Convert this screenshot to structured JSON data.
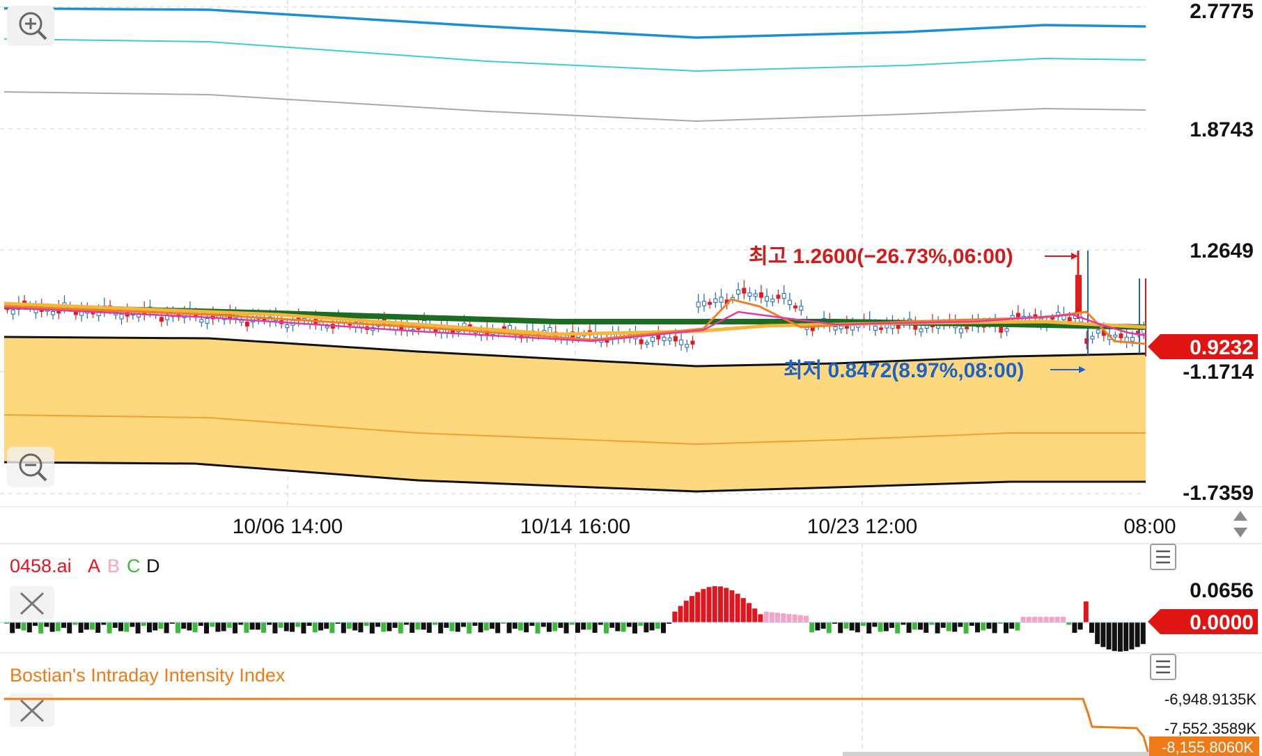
{
  "colors": {
    "band_fill": "#fdd87f",
    "band_edge": "#111111",
    "band_mid": "#f2a030",
    "ma_green": "#1e6b23",
    "ma_yellow": "#f5b63b",
    "ma_orange": "#f07f20",
    "ma_magenta": "#e23aa5",
    "top_blue": "#1a8fd8",
    "top_cyan": "#3ccbd8",
    "top_gray": "#a8a8a8",
    "up_candle": "#1a63c7",
    "down_candle": "#e01b1b",
    "hi_annot": "#d21c1c",
    "lo_annot": "#1d63c6",
    "price_tag": "#e11414",
    "bii_line": "#ef7a16",
    "osc_red": "#e3151c",
    "osc_pink": "#f7a3c6",
    "osc_green": "#3cba3c",
    "osc_black": "#111111"
  },
  "main_chart": {
    "y_axis_labels": [
      "2.7775",
      "1.8743",
      "1.2649",
      "-1.1714",
      "-1.7359"
    ],
    "current_price": "0.9232",
    "high_annotation": "최고 1.2600(−26.73%,06:00)",
    "low_annotation": "최저 0.8472(8.97%,08:00)",
    "x_axis_labels": [
      "10/06 14:00",
      "10/14 16:00",
      "10/23 12:00",
      "08:00"
    ],
    "zoom_in_icon": "zoom-in-icon",
    "zoom_out_icon": "zoom-out-icon",
    "scroll_icon": "updown-arrows-icon"
  },
  "oscillator": {
    "title": "0458.ai",
    "legend": [
      "A",
      "B",
      "C",
      "D"
    ],
    "legend_colors": [
      "#e3151c",
      "#f7a3c6",
      "#3cba3c",
      "#111111"
    ],
    "y_top": "0.0656",
    "current": "0.0000",
    "menu_icon": "menu-icon",
    "close_icon": "close-icon"
  },
  "bii": {
    "title": "Bostian's Intraday Intensity Index",
    "y_labels": [
      "-6,948.9135K",
      "-7,552.3589K"
    ],
    "current": "-8,155.8060K",
    "menu_icon": "menu-icon",
    "close_icon": "close-icon"
  },
  "chart_data": {
    "type": "candlestick",
    "title": "",
    "x_ticks": [
      "10/06 14:00",
      "10/14 16:00",
      "10/23 12:00",
      "08:00"
    ],
    "price_high": 1.26,
    "price_low": 0.8472,
    "last_price": 0.9232,
    "indicators": [
      "0458.ai",
      "Bostian's Intraday Intensity Index"
    ]
  }
}
